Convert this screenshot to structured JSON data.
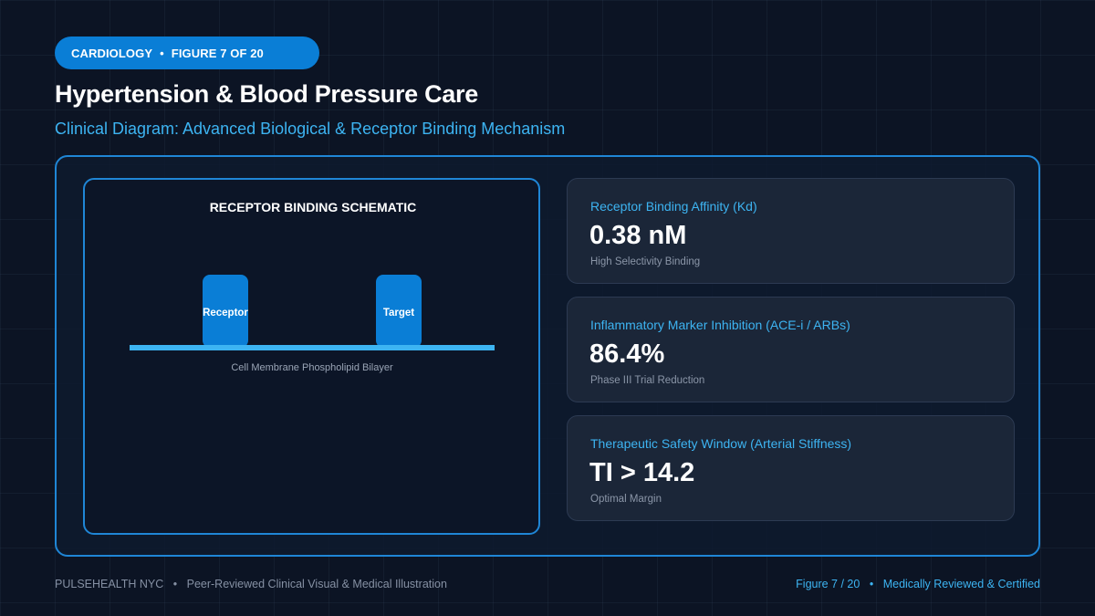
{
  "colors": {
    "accent": "#1f86d6",
    "accent_text": "#3db4f2",
    "pill_bg": "#0a7ed6",
    "background": "#0c1424",
    "card_bg": "#1b2638",
    "muted": "#8b96a8"
  },
  "header": {
    "category": "CARDIOLOGY",
    "separator": "•",
    "figure": "FIGURE 7 OF 20",
    "title": "Hypertension & Blood Pressure Care",
    "subtitle": "Clinical Diagram: Advanced Biological & Receptor Binding Mechanism"
  },
  "schematic": {
    "title": "RECEPTOR BINDING SCHEMATIC",
    "receptor_label": "Receptor",
    "target_label": "Target",
    "membrane_label": "Cell Membrane Phospholipid Bilayer"
  },
  "metrics": [
    {
      "label": "Receptor Binding Affinity (Kd)",
      "value": "0.38 nM",
      "note": "High Selectivity Binding"
    },
    {
      "label": "Inflammatory Marker Inhibition (ACE-i / ARBs)",
      "value": "86.4%",
      "note": "Phase III Trial Reduction"
    },
    {
      "label": "Therapeutic Safety Window (Arterial Stiffness)",
      "value": "TI > 14.2",
      "note": "Optimal Margin"
    }
  ],
  "footer": {
    "brand": "PULSEHEALTH NYC",
    "separator": "•",
    "tagline": "Peer-Reviewed Clinical Visual & Medical Illustration",
    "figure": "Figure 7 / 20",
    "certification": "Medically Reviewed & Certified"
  }
}
